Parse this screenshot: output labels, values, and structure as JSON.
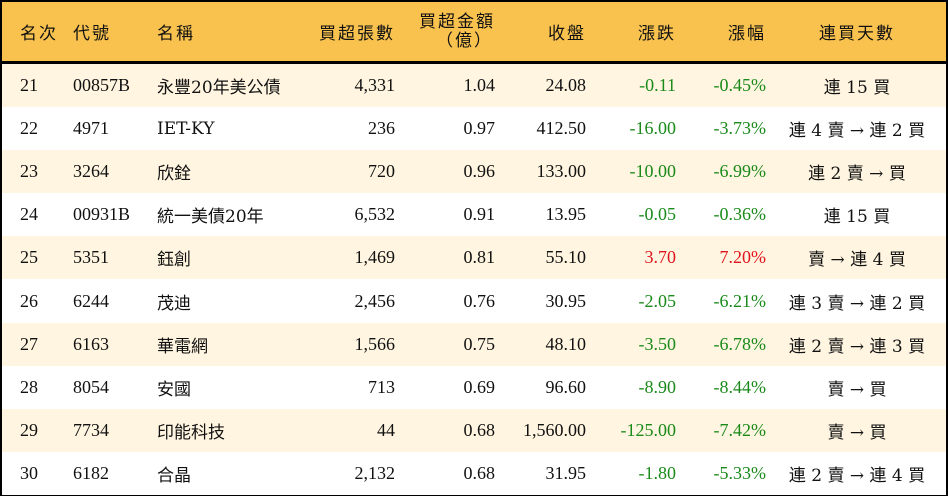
{
  "colors": {
    "header_bg": "#F9C24F",
    "row_alt_bg": "#FFF5E0",
    "down": "#1a8a1a",
    "up": "#e0141e"
  },
  "headers": {
    "rank": "名次",
    "code": "代號",
    "name": "名稱",
    "net_buy_lots": "買超張數",
    "net_buy_amount_l1": "買超金額",
    "net_buy_amount_l2": "（億）",
    "close": "收盤",
    "change": "漲跌",
    "pct": "漲幅",
    "streak": "連買天數"
  },
  "rows": [
    {
      "rank": "21",
      "code": "00857B",
      "name": "永豐20年美公債",
      "lots": "4,331",
      "amount": "1.04",
      "close": "24.08",
      "change": "-0.11",
      "pct": "-0.45%",
      "streak": "連 15 買",
      "dir": "neg"
    },
    {
      "rank": "22",
      "code": "4971",
      "name": "IET-KY",
      "lots": "236",
      "amount": "0.97",
      "close": "412.50",
      "change": "-16.00",
      "pct": "-3.73%",
      "streak": "連 4 賣 → 連 2 買",
      "dir": "neg"
    },
    {
      "rank": "23",
      "code": "3264",
      "name": "欣銓",
      "lots": "720",
      "amount": "0.96",
      "close": "133.00",
      "change": "-10.00",
      "pct": "-6.99%",
      "streak": "連 2 賣 → 買",
      "dir": "neg"
    },
    {
      "rank": "24",
      "code": "00931B",
      "name": "統一美債20年",
      "lots": "6,532",
      "amount": "0.91",
      "close": "13.95",
      "change": "-0.05",
      "pct": "-0.36%",
      "streak": "連 15 買",
      "dir": "neg"
    },
    {
      "rank": "25",
      "code": "5351",
      "name": "鈺創",
      "lots": "1,469",
      "amount": "0.81",
      "close": "55.10",
      "change": "3.70",
      "pct": "7.20%",
      "streak": "賣 → 連 4 買",
      "dir": "pos"
    },
    {
      "rank": "26",
      "code": "6244",
      "name": "茂迪",
      "lots": "2,456",
      "amount": "0.76",
      "close": "30.95",
      "change": "-2.05",
      "pct": "-6.21%",
      "streak": "連 3 賣 → 連 2 買",
      "dir": "neg"
    },
    {
      "rank": "27",
      "code": "6163",
      "name": "華電網",
      "lots": "1,566",
      "amount": "0.75",
      "close": "48.10",
      "change": "-3.50",
      "pct": "-6.78%",
      "streak": "連 2 賣 → 連 3 買",
      "dir": "neg"
    },
    {
      "rank": "28",
      "code": "8054",
      "name": "安國",
      "lots": "713",
      "amount": "0.69",
      "close": "96.60",
      "change": "-8.90",
      "pct": "-8.44%",
      "streak": "賣 → 買",
      "dir": "neg"
    },
    {
      "rank": "29",
      "code": "7734",
      "name": "印能科技",
      "lots": "44",
      "amount": "0.68",
      "close": "1,560.00",
      "change": "-125.00",
      "pct": "-7.42%",
      "streak": "賣 → 買",
      "dir": "neg"
    },
    {
      "rank": "30",
      "code": "6182",
      "name": "合晶",
      "lots": "2,132",
      "amount": "0.68",
      "close": "31.95",
      "change": "-1.80",
      "pct": "-5.33%",
      "streak": "連 2 賣 → 連 4 買",
      "dir": "neg"
    }
  ]
}
